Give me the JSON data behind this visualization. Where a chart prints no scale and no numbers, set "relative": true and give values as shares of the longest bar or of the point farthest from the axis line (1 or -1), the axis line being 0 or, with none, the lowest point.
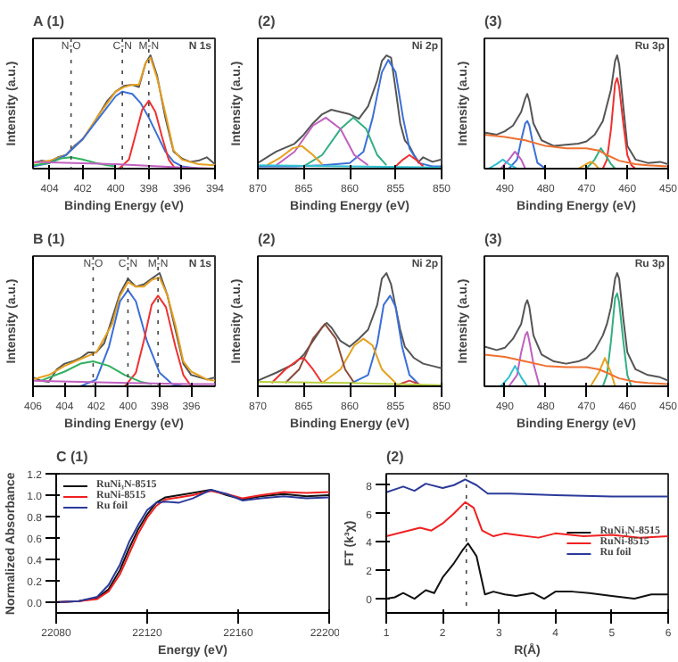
{
  "chart_data": [
    {
      "type": "line",
      "title": "A (1)",
      "xlabel": "Binding Energy (eV)",
      "ylabel": "Intensity (a.u.)",
      "relative": true,
      "tick_labels": "x",
      "xlim": [
        405,
        394
      ],
      "xticks": [
        404,
        402,
        400,
        398,
        396,
        394
      ],
      "annotations": [
        "N 1s"
      ],
      "ref_lines": [
        {
          "axis": "x",
          "value": 402.7,
          "label": "N-O",
          "line_style": "dotted"
        },
        {
          "axis": "x",
          "value": 399.6,
          "label": "C-N",
          "line_style": "dotted"
        },
        {
          "axis": "x",
          "value": 398.0,
          "label": "M-N",
          "line_style": "dotted"
        }
      ],
      "series": [
        {
          "color": "#555555",
          "x": [
            405,
            404.5,
            404,
            403.5,
            403,
            402.5,
            402,
            401.5,
            401,
            400.5,
            400,
            399.5,
            399,
            398.6,
            398.2,
            397.9,
            397.5,
            397,
            396.5,
            396,
            395.5,
            395,
            394.5,
            394
          ],
          "values": [
            0.05,
            0.07,
            0.06,
            0.1,
            0.12,
            0.2,
            0.26,
            0.36,
            0.48,
            0.6,
            0.68,
            0.73,
            0.74,
            0.72,
            0.93,
            1.0,
            0.82,
            0.45,
            0.15,
            0.09,
            0.06,
            0.07,
            0.1,
            0.04
          ]
        },
        {
          "color": "#e6a020",
          "x": [
            405,
            404,
            403,
            402,
            401,
            400,
            399.5,
            399,
            398.6,
            398.2,
            397.9,
            397.5,
            397,
            396.5,
            396,
            395,
            394
          ],
          "values": [
            0.05,
            0.07,
            0.12,
            0.26,
            0.48,
            0.68,
            0.72,
            0.74,
            0.74,
            0.93,
            0.98,
            0.8,
            0.49,
            0.16,
            0.08,
            0.04,
            0.03
          ]
        },
        {
          "color": "#3a6fd8",
          "x": [
            405,
            404,
            403,
            402,
            401,
            400,
            399.6,
            399,
            398.5,
            398,
            397.5,
            397,
            396.5,
            396,
            395
          ],
          "values": [
            0.02,
            0.05,
            0.12,
            0.26,
            0.45,
            0.64,
            0.68,
            0.66,
            0.58,
            0.45,
            0.3,
            0.15,
            0.06,
            0.02,
            0.0
          ]
        },
        {
          "color": "#f03030",
          "x": [
            399.8,
            399.2,
            398.8,
            398.4,
            398,
            397.6,
            397.2,
            396.8,
            396.4
          ],
          "values": [
            0.0,
            0.08,
            0.3,
            0.52,
            0.6,
            0.5,
            0.28,
            0.08,
            0.0
          ]
        },
        {
          "color": "#30b060",
          "x": [
            405,
            404,
            403.3,
            402.7,
            402,
            401.2,
            400.5,
            400
          ],
          "values": [
            0.03,
            0.05,
            0.09,
            0.1,
            0.08,
            0.05,
            0.03,
            0.02
          ]
        },
        {
          "color": "#c060c0",
          "x": [
            405,
            400,
            396,
            394
          ],
          "values": [
            0.06,
            0.04,
            0.01,
            0.0
          ]
        }
      ]
    },
    {
      "type": "line",
      "title": "(2)",
      "xlabel": "Binding Energy (eV)",
      "ylabel": "Intensity (a.u.)",
      "relative": true,
      "tick_labels": "x",
      "xlim": [
        870,
        850
      ],
      "xticks": [
        870,
        865,
        860,
        855,
        850
      ],
      "annotations": [
        "Ni 2p"
      ],
      "series": [
        {
          "color": "#555555",
          "x": [
            870,
            868,
            866,
            865,
            864,
            863,
            862,
            861,
            860,
            859,
            858,
            857,
            856.5,
            856,
            855.5,
            855,
            854.5,
            854,
            853.5,
            853,
            852.5,
            852,
            851,
            850
          ],
          "values": [
            0.05,
            0.15,
            0.22,
            0.3,
            0.4,
            0.48,
            0.52,
            0.5,
            0.48,
            0.44,
            0.55,
            0.78,
            0.95,
            1.0,
            0.98,
            0.7,
            0.4,
            0.25,
            0.2,
            0.12,
            0.06,
            0.1,
            0.06,
            0.08
          ]
        },
        {
          "color": "#3a6fd8",
          "x": [
            870,
            866,
            863,
            860,
            858.5,
            857.5,
            856.5,
            855.8,
            855,
            854.2,
            853.5,
            852.5,
            851,
            850
          ],
          "values": [
            0.02,
            0.02,
            0.03,
            0.05,
            0.15,
            0.45,
            0.85,
            0.96,
            0.85,
            0.45,
            0.18,
            0.05,
            0.02,
            0.02
          ]
        },
        {
          "color": "#30b080",
          "x": [
            865,
            863,
            861,
            859.6,
            858.2,
            857,
            856
          ],
          "values": [
            0.02,
            0.12,
            0.35,
            0.45,
            0.35,
            0.12,
            0.03
          ]
        },
        {
          "color": "#c060c0",
          "x": [
            868,
            866,
            864,
            862.6,
            861,
            859.5,
            858
          ],
          "values": [
            0.03,
            0.15,
            0.38,
            0.45,
            0.35,
            0.12,
            0.03
          ]
        },
        {
          "color": "#e6a020",
          "x": [
            869,
            867.5,
            866.2,
            865.2,
            864,
            863
          ],
          "values": [
            0.03,
            0.1,
            0.18,
            0.2,
            0.12,
            0.04
          ]
        },
        {
          "color": "#f03030",
          "x": [
            855,
            854.2,
            853.5,
            852.8,
            852
          ],
          "values": [
            0.02,
            0.08,
            0.12,
            0.08,
            0.02
          ]
        },
        {
          "color": "#30c0d0",
          "x": [
            870,
            860,
            850
          ],
          "values": [
            0.03,
            0.02,
            0.01
          ]
        }
      ]
    },
    {
      "type": "line",
      "title": "(3)",
      "xlabel": "Binding Energy (eV)",
      "ylabel": "Intensity (a.u.)",
      "relative": true,
      "tick_labels": "x",
      "xlim": [
        495,
        450
      ],
      "xticks": [
        490,
        480,
        470,
        460,
        450
      ],
      "annotations": [
        "Ru 3p"
      ],
      "series": [
        {
          "color": "#555555",
          "x": [
            495,
            492,
            490,
            488,
            486,
            485,
            484.5,
            484,
            483,
            481,
            478,
            475,
            472,
            470,
            468,
            466,
            464,
            463,
            462.5,
            462,
            461,
            460,
            458,
            455,
            452,
            450
          ],
          "values": [
            0.32,
            0.3,
            0.33,
            0.38,
            0.5,
            0.62,
            0.66,
            0.6,
            0.4,
            0.25,
            0.2,
            0.21,
            0.22,
            0.24,
            0.3,
            0.42,
            0.7,
            0.95,
            1.0,
            0.92,
            0.55,
            0.2,
            0.08,
            0.05,
            0.06,
            0.04
          ]
        },
        {
          "color": "#f03030",
          "x": [
            466,
            465,
            464,
            463,
            462.5,
            462,
            461,
            460,
            459,
            458
          ],
          "values": [
            0.0,
            0.08,
            0.35,
            0.75,
            0.8,
            0.72,
            0.4,
            0.12,
            0.03,
            0.0
          ]
        },
        {
          "color": "#30b080",
          "x": [
            470,
            468,
            466.5,
            465,
            464,
            463
          ],
          "values": [
            0.0,
            0.08,
            0.18,
            0.1,
            0.04,
            0.0
          ]
        },
        {
          "color": "#e6a020",
          "x": [
            472,
            470,
            469,
            468,
            467
          ],
          "values": [
            0.0,
            0.04,
            0.06,
            0.04,
            0.0
          ]
        },
        {
          "color": "#3a6fd8",
          "x": [
            489,
            487,
            486,
            485,
            484.5,
            484,
            483,
            482,
            480
          ],
          "values": [
            0.0,
            0.08,
            0.25,
            0.4,
            0.42,
            0.38,
            0.2,
            0.05,
            0.0
          ]
        },
        {
          "color": "#c060c0",
          "x": [
            491,
            489,
            487.5,
            486,
            485
          ],
          "values": [
            0.0,
            0.08,
            0.15,
            0.08,
            0.0
          ]
        },
        {
          "color": "#30c0d0",
          "x": [
            494,
            492,
            490.5,
            489,
            487
          ],
          "values": [
            0.0,
            0.04,
            0.08,
            0.04,
            0.0
          ]
        },
        {
          "color": "#f07030",
          "x": [
            495,
            490,
            485,
            480,
            475,
            470,
            467,
            465,
            462,
            458,
            455,
            450
          ],
          "values": [
            0.3,
            0.28,
            0.25,
            0.2,
            0.18,
            0.18,
            0.16,
            0.12,
            0.07,
            0.04,
            0.03,
            0.02
          ]
        }
      ]
    },
    {
      "type": "line",
      "title": "B (1)",
      "xlabel": "Binding Energy (eV)",
      "ylabel": "Intensity (a.u.)",
      "relative": true,
      "tick_labels": "x",
      "xlim": [
        406,
        394.5
      ],
      "xticks": [
        406,
        404,
        402,
        400,
        398,
        396
      ],
      "annotations": [
        "N 1s"
      ],
      "ref_lines": [
        {
          "axis": "x",
          "value": 402.2,
          "label": "N-O",
          "line_style": "dotted"
        },
        {
          "axis": "x",
          "value": 400.0,
          "label": "C-N",
          "line_style": "dotted"
        },
        {
          "axis": "x",
          "value": 398.1,
          "label": "M-N",
          "line_style": "dotted"
        }
      ],
      "series": [
        {
          "color": "#555555",
          "x": [
            406,
            405.5,
            405,
            404.5,
            404,
            403.5,
            403,
            402.5,
            402,
            401.5,
            401,
            400.5,
            400,
            399.5,
            399,
            398.5,
            398,
            397.5,
            397,
            396.5,
            396,
            395.5,
            395,
            394.5
          ],
          "values": [
            0.08,
            0.05,
            0.04,
            0.15,
            0.2,
            0.22,
            0.25,
            0.3,
            0.3,
            0.38,
            0.6,
            0.82,
            0.95,
            0.88,
            0.9,
            0.95,
            1.0,
            0.8,
            0.5,
            0.2,
            0.1,
            0.08,
            0.06,
            0.08
          ]
        },
        {
          "color": "#e6a020",
          "x": [
            406,
            405,
            404,
            403,
            402,
            401,
            400.5,
            400,
            399.5,
            399,
            398.5,
            398,
            397.5,
            397,
            396.5,
            396,
            395,
            394.5
          ],
          "values": [
            0.06,
            0.1,
            0.18,
            0.24,
            0.3,
            0.55,
            0.8,
            0.92,
            0.88,
            0.88,
            0.94,
            0.96,
            0.8,
            0.54,
            0.22,
            0.13,
            0.06,
            0.05
          ]
        },
        {
          "color": "#3a6fd8",
          "x": [
            403,
            402,
            401.2,
            400.5,
            400,
            399.5,
            398.8,
            398,
            397.2,
            396.5
          ],
          "values": [
            0.0,
            0.06,
            0.35,
            0.75,
            0.85,
            0.75,
            0.4,
            0.12,
            0.02,
            0.0
          ]
        },
        {
          "color": "#f03030",
          "x": [
            400.2,
            399.5,
            399,
            398.5,
            398.1,
            397.6,
            397,
            396.5,
            396
          ],
          "values": [
            0.0,
            0.12,
            0.4,
            0.72,
            0.8,
            0.7,
            0.35,
            0.1,
            0.0
          ]
        },
        {
          "color": "#30b060",
          "x": [
            405.5,
            404,
            403,
            402.2,
            401.2,
            400.2,
            399.2,
            398.5
          ],
          "values": [
            0.05,
            0.13,
            0.2,
            0.22,
            0.18,
            0.1,
            0.04,
            0.02
          ]
        },
        {
          "color": "#c060c0",
          "x": [
            406,
            400,
            396,
            394.5
          ],
          "values": [
            0.05,
            0.03,
            0.02,
            0.02
          ]
        }
      ]
    },
    {
      "type": "line",
      "title": "(2)",
      "xlabel": "Binding Energy (eV)",
      "ylabel": "Intensity (a.u.)",
      "relative": true,
      "tick_labels": "x",
      "xlim": [
        870,
        850
      ],
      "xticks": [
        870,
        865,
        860,
        855,
        850
      ],
      "annotations": [
        "Ni 2p"
      ],
      "series": [
        {
          "color": "#555555",
          "x": [
            870,
            868,
            866,
            865,
            864,
            863,
            862.5,
            862,
            861,
            860,
            859,
            858,
            857,
            856.5,
            856,
            855.5,
            855,
            854.5,
            854,
            853.5,
            853,
            852,
            851,
            850
          ],
          "values": [
            0.05,
            0.12,
            0.2,
            0.28,
            0.4,
            0.52,
            0.56,
            0.52,
            0.4,
            0.35,
            0.42,
            0.5,
            0.72,
            0.95,
            1.0,
            0.9,
            0.7,
            0.5,
            0.35,
            0.3,
            0.25,
            0.2,
            0.18,
            0.16
          ]
        },
        {
          "color": "#3a6fd8",
          "x": [
            860,
            858,
            857,
            856.3,
            855.6,
            855,
            854.3,
            853.5,
            852.5
          ],
          "values": [
            0.02,
            0.1,
            0.38,
            0.72,
            0.8,
            0.7,
            0.35,
            0.1,
            0.02
          ]
        },
        {
          "color": "#e6a020",
          "x": [
            863,
            861,
            859.5,
            858.5,
            857.5,
            856.5,
            855
          ],
          "values": [
            0.03,
            0.15,
            0.36,
            0.42,
            0.36,
            0.15,
            0.03
          ]
        },
        {
          "color": "#8b4a3a",
          "x": [
            867,
            865.5,
            864,
            862.7,
            861.5,
            860.5,
            859.5
          ],
          "values": [
            0.03,
            0.15,
            0.42,
            0.55,
            0.42,
            0.15,
            0.03
          ]
        },
        {
          "color": "#f03030",
          "x": [
            868.5,
            867,
            865.5,
            865,
            864,
            863
          ],
          "values": [
            0.03,
            0.15,
            0.24,
            0.25,
            0.15,
            0.03
          ]
        },
        {
          "color": "#d04040",
          "x": [
            855,
            854.2,
            853.5,
            852.8,
            852
          ],
          "values": [
            0.0,
            0.03,
            0.05,
            0.03,
            0.0
          ]
        },
        {
          "color": "#b8d040",
          "x": [
            870,
            860,
            850
          ],
          "values": [
            0.04,
            0.03,
            0.01
          ]
        }
      ]
    },
    {
      "type": "line",
      "title": "(3)",
      "xlabel": "Binding Energy (eV)",
      "ylabel": "Intensity (a.u.)",
      "relative": true,
      "tick_labels": "x",
      "xlim": [
        495,
        450
      ],
      "xticks": [
        490,
        480,
        470,
        460,
        450
      ],
      "annotations": [
        "Ru 3p"
      ],
      "series": [
        {
          "color": "#555555",
          "x": [
            495,
            492,
            490,
            488,
            486,
            485,
            484.5,
            484,
            483,
            481,
            478,
            475,
            472,
            470,
            468,
            466,
            465,
            464,
            463,
            462.5,
            462,
            461,
            460,
            458,
            455,
            452,
            450
          ],
          "values": [
            0.35,
            0.32,
            0.34,
            0.42,
            0.55,
            0.72,
            0.76,
            0.7,
            0.45,
            0.28,
            0.22,
            0.2,
            0.22,
            0.25,
            0.32,
            0.45,
            0.55,
            0.7,
            0.95,
            1.0,
            0.95,
            0.6,
            0.3,
            0.15,
            0.1,
            0.08,
            0.05
          ]
        },
        {
          "color": "#30b080",
          "x": [
            466,
            465,
            464,
            463,
            462.5,
            462,
            461,
            460,
            459
          ],
          "values": [
            0.0,
            0.1,
            0.4,
            0.78,
            0.82,
            0.74,
            0.4,
            0.1,
            0.0
          ]
        },
        {
          "color": "#e6a020",
          "x": [
            469,
            467,
            465.5,
            464,
            463
          ],
          "values": [
            0.0,
            0.12,
            0.25,
            0.12,
            0.0
          ]
        },
        {
          "color": "#c060c0",
          "x": [
            489,
            487,
            486,
            485,
            484.5,
            484,
            483,
            481.5
          ],
          "values": [
            0.0,
            0.1,
            0.3,
            0.45,
            0.48,
            0.4,
            0.2,
            0.0
          ]
        },
        {
          "color": "#30c0d0",
          "x": [
            491,
            489,
            487.5,
            486,
            484.5
          ],
          "values": [
            0.0,
            0.08,
            0.18,
            0.08,
            0.0
          ]
        },
        {
          "color": "#f07030",
          "x": [
            495,
            490,
            485,
            480,
            475,
            470,
            467,
            465,
            462,
            458,
            455,
            450
          ],
          "values": [
            0.28,
            0.26,
            0.22,
            0.18,
            0.17,
            0.17,
            0.15,
            0.12,
            0.07,
            0.04,
            0.03,
            0.02
          ]
        }
      ]
    },
    {
      "type": "line",
      "title": "C (1)",
      "xlabel": "Energy (eV)",
      "ylabel": "Normalized Absorbance",
      "xlim": [
        22080,
        22200
      ],
      "xticks": [
        22080,
        22120,
        22160,
        22200
      ],
      "ylim": [
        -0.1,
        1.2
      ],
      "yticks": [
        {
          "value": 0,
          "label": "0.0"
        },
        0.2,
        0.4,
        0.6,
        0.8,
        {
          "value": 1,
          "label": "1.0"
        },
        1.2
      ],
      "legend": "top left",
      "series": [
        {
          "name": "RuNi₃N-8515",
          "color": "#111111",
          "x": [
            22080,
            22090,
            22098,
            22103,
            22108,
            22112,
            22116,
            22120,
            22124,
            22128,
            22134,
            22140,
            22148,
            22155,
            22162,
            22170,
            22180,
            22190,
            22200
          ],
          "values": [
            0.0,
            0.01,
            0.04,
            0.12,
            0.3,
            0.5,
            0.68,
            0.82,
            0.93,
            0.98,
            1.0,
            1.02,
            1.05,
            1.0,
            0.96,
            0.99,
            1.01,
            0.99,
            1.0
          ]
        },
        {
          "name": "RuNi-8515",
          "color": "#f02020",
          "x": [
            22080,
            22090,
            22098,
            22103,
            22108,
            22112,
            22116,
            22120,
            22124,
            22128,
            22134,
            22140,
            22148,
            22155,
            22162,
            22170,
            22180,
            22190,
            22200
          ],
          "values": [
            0.0,
            0.01,
            0.03,
            0.1,
            0.26,
            0.45,
            0.64,
            0.79,
            0.9,
            0.96,
            0.98,
            1.0,
            1.04,
            1.01,
            0.97,
            1.0,
            1.03,
            1.02,
            1.03
          ]
        },
        {
          "name": "Ru foil",
          "color": "#2a3a9a",
          "x": [
            22080,
            22090,
            22098,
            22103,
            22108,
            22112,
            22116,
            22120,
            22124,
            22128,
            22134,
            22140,
            22148,
            22155,
            22162,
            22170,
            22180,
            22190,
            22200
          ],
          "values": [
            0.0,
            0.01,
            0.05,
            0.16,
            0.35,
            0.56,
            0.72,
            0.86,
            0.93,
            0.94,
            0.93,
            0.97,
            1.05,
            1.01,
            0.95,
            0.97,
            0.99,
            0.97,
            0.98
          ]
        }
      ]
    },
    {
      "type": "line",
      "title": "(2)",
      "xlabel": "R(Å)",
      "ylabel": "FT (k³χ)",
      "xlim": [
        1,
        6
      ],
      "xticks": [
        1,
        2,
        3,
        4,
        5,
        6
      ],
      "ylim": [
        -1,
        8.8
      ],
      "yticks": [
        0,
        2,
        4,
        6,
        8
      ],
      "legend": "right",
      "ref_lines": [
        {
          "axis": "x",
          "value": 2.42,
          "line_style": "dotted"
        }
      ],
      "series": [
        {
          "name": "RuNi₃N-8515",
          "color": "#111111",
          "x": [
            1,
            1.15,
            1.3,
            1.5,
            1.7,
            1.85,
            2,
            2.2,
            2.35,
            2.45,
            2.6,
            2.75,
            2.9,
            3.1,
            3.3,
            3.6,
            3.8,
            4,
            4.3,
            4.6,
            5,
            5.4,
            5.7,
            6
          ],
          "values": [
            0.0,
            0.1,
            0.4,
            0.0,
            0.6,
            0.4,
            1.5,
            2.5,
            3.4,
            3.9,
            3.0,
            0.3,
            0.5,
            0.3,
            0.2,
            0.4,
            0.0,
            0.5,
            0.5,
            0.4,
            0.2,
            0.0,
            0.3,
            0.3
          ]
        },
        {
          "name": "RuNi-8515",
          "color": "#f02020",
          "x": [
            1,
            1.3,
            1.6,
            1.8,
            2,
            2.2,
            2.4,
            2.55,
            2.7,
            2.9,
            3.1,
            3.3,
            3.7,
            4,
            4.5,
            5,
            5.5,
            6
          ],
          "values": [
            4.4,
            4.7,
            5.0,
            4.8,
            5.3,
            6.0,
            6.8,
            6.4,
            4.8,
            4.4,
            4.6,
            4.5,
            4.3,
            4.6,
            4.4,
            4.5,
            4.3,
            4.4
          ]
        },
        {
          "name": "Ru foil",
          "color": "#2a3a9a",
          "x": [
            1,
            1.3,
            1.5,
            1.7,
            2,
            2.2,
            2.4,
            2.6,
            2.8,
            3.2,
            4,
            5,
            6
          ],
          "values": [
            7.5,
            7.9,
            7.6,
            8.1,
            7.8,
            8.0,
            8.4,
            8.0,
            7.4,
            7.4,
            7.3,
            7.2,
            7.2
          ]
        }
      ]
    }
  ]
}
